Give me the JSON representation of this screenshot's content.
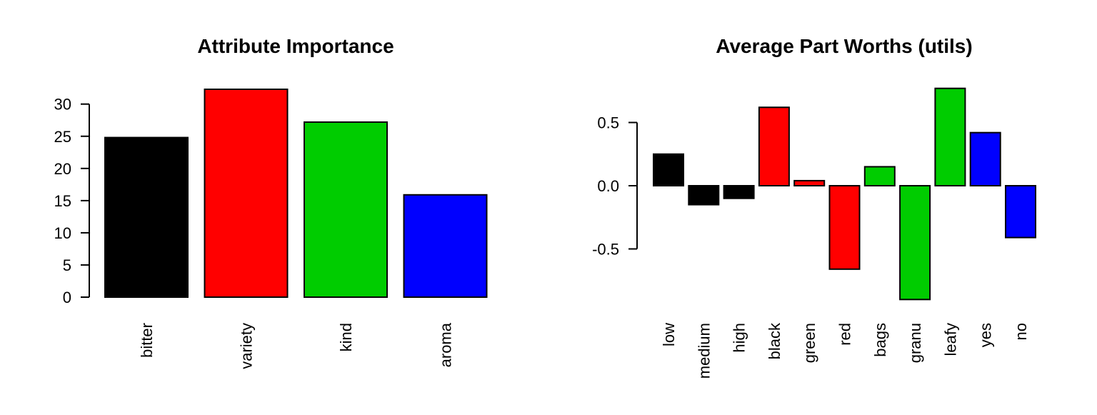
{
  "chart_data": [
    {
      "type": "bar",
      "title": "Attribute Importance",
      "xlabel": "",
      "ylabel": "",
      "categories": [
        "bitter",
        "variety",
        "kind",
        "aroma"
      ],
      "values": [
        24.8,
        32.3,
        27.2,
        15.9
      ],
      "colors": [
        "#000000",
        "#ff0000",
        "#00cc00",
        "#0000ff"
      ],
      "yticks": [
        0,
        5,
        10,
        15,
        20,
        25,
        30
      ],
      "ytick_labels": [
        "0",
        "5",
        "10",
        "15",
        "20",
        "25",
        "30"
      ],
      "ylim": [
        0,
        32.3
      ],
      "grid": false,
      "category_label_orientation": "vertical"
    },
    {
      "type": "bar",
      "title": "Average Part Worths (utils)",
      "xlabel": "",
      "ylabel": "",
      "categories": [
        "low",
        "medium",
        "high",
        "black",
        "green",
        "red",
        "bags",
        "granu",
        "leafy",
        "yes",
        "no"
      ],
      "values": [
        0.25,
        -0.15,
        -0.1,
        0.62,
        0.04,
        -0.66,
        0.15,
        -0.9,
        0.77,
        0.42,
        -0.41
      ],
      "colors": [
        "#000000",
        "#000000",
        "#000000",
        "#ff0000",
        "#ff0000",
        "#ff0000",
        "#00cc00",
        "#00cc00",
        "#00cc00",
        "#0000ff",
        "#0000ff"
      ],
      "yticks": [
        -0.5,
        0.0,
        0.5
      ],
      "ytick_labels": [
        "-0.5",
        "0.0",
        "0.5"
      ],
      "ylim": [
        -0.9,
        0.77
      ],
      "grid": false,
      "category_label_orientation": "vertical"
    }
  ]
}
